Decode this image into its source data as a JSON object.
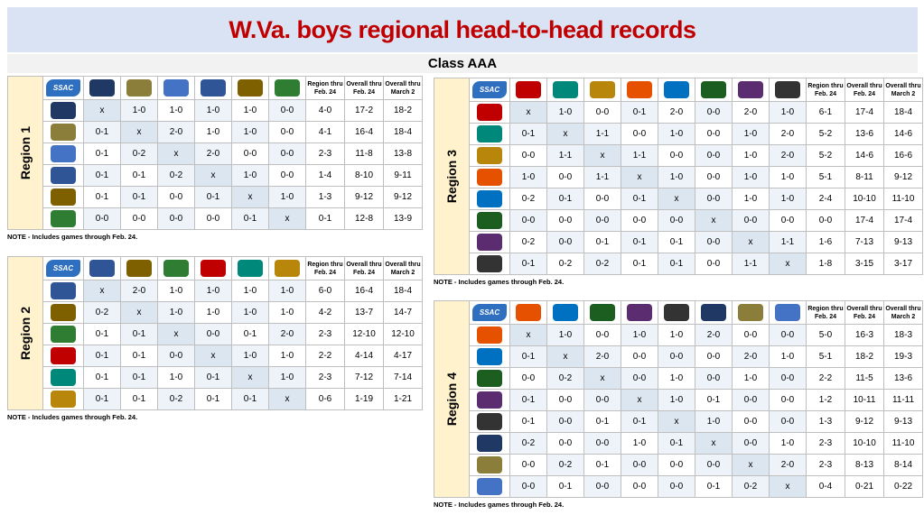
{
  "header": {
    "title": "W.Va. boys regional head-to-head records",
    "subtitle": "Class AAA"
  },
  "column_headers": [
    "Region thru Feb. 24",
    "Overall thru Feb. 24",
    "Overall thru March 2"
  ],
  "regions": [
    {
      "label": "Region 1",
      "corner_logo": "SSAC",
      "note": "NOTE - Includes games through Feb. 24.",
      "rows": [
        [
          "x",
          "1-0",
          "1-0",
          "1-0",
          "1-0",
          "0-0",
          "4-0",
          "17-2",
          "18-2"
        ],
        [
          "0-1",
          "x",
          "2-0",
          "1-0",
          "1-0",
          "0-0",
          "4-1",
          "16-4",
          "18-4"
        ],
        [
          "0-1",
          "0-2",
          "x",
          "2-0",
          "0-0",
          "0-0",
          "2-3",
          "11-8",
          "13-8"
        ],
        [
          "0-1",
          "0-1",
          "0-2",
          "x",
          "1-0",
          "0-0",
          "1-4",
          "8-10",
          "9-11"
        ],
        [
          "0-1",
          "0-1",
          "0-0",
          "0-1",
          "x",
          "1-0",
          "1-3",
          "9-12",
          "9-12"
        ],
        [
          "0-0",
          "0-0",
          "0-0",
          "0-0",
          "0-1",
          "x",
          "0-1",
          "12-8",
          "13-9"
        ]
      ]
    },
    {
      "label": "Region 2",
      "corner_logo": "SSAC",
      "note": "NOTE - Includes games through Feb. 24.",
      "rows": [
        [
          "x",
          "2-0",
          "1-0",
          "1-0",
          "1-0",
          "1-0",
          "6-0",
          "16-4",
          "18-4"
        ],
        [
          "0-2",
          "x",
          "1-0",
          "1-0",
          "1-0",
          "1-0",
          "4-2",
          "13-7",
          "14-7"
        ],
        [
          "0-1",
          "0-1",
          "x",
          "0-0",
          "0-1",
          "2-0",
          "2-3",
          "12-10",
          "12-10"
        ],
        [
          "0-1",
          "0-1",
          "0-0",
          "x",
          "1-0",
          "1-0",
          "2-2",
          "4-14",
          "4-17"
        ],
        [
          "0-1",
          "0-1",
          "1-0",
          "0-1",
          "x",
          "1-0",
          "2-3",
          "7-12",
          "7-14"
        ],
        [
          "0-1",
          "0-1",
          "0-2",
          "0-1",
          "0-1",
          "x",
          "0-6",
          "1-19",
          "1-21"
        ]
      ]
    },
    {
      "label": "Region 3",
      "corner_logo": "SSAC",
      "note": "NOTE - Includes games through Feb. 24.",
      "rows": [
        [
          "x",
          "1-0",
          "0-0",
          "0-1",
          "2-0",
          "0-0",
          "2-0",
          "1-0",
          "6-1",
          "17-4",
          "18-4"
        ],
        [
          "0-1",
          "x",
          "1-1",
          "0-0",
          "1-0",
          "0-0",
          "1-0",
          "2-0",
          "5-2",
          "13-6",
          "14-6"
        ],
        [
          "0-0",
          "1-1",
          "x",
          "1-1",
          "0-0",
          "0-0",
          "1-0",
          "2-0",
          "5-2",
          "14-6",
          "16-6"
        ],
        [
          "1-0",
          "0-0",
          "1-1",
          "x",
          "1-0",
          "0-0",
          "1-0",
          "1-0",
          "5-1",
          "8-11",
          "9-12"
        ],
        [
          "0-2",
          "0-1",
          "0-0",
          "0-1",
          "x",
          "0-0",
          "1-0",
          "1-0",
          "2-4",
          "10-10",
          "11-10"
        ],
        [
          "0-0",
          "0-0",
          "0-0",
          "0-0",
          "0-0",
          "x",
          "0-0",
          "0-0",
          "0-0",
          "17-4",
          "17-4"
        ],
        [
          "0-2",
          "0-0",
          "0-1",
          "0-1",
          "0-1",
          "0-0",
          "x",
          "1-1",
          "1-6",
          "7-13",
          "9-13"
        ],
        [
          "0-1",
          "0-2",
          "0-2",
          "0-1",
          "0-1",
          "0-0",
          "1-1",
          "x",
          "1-8",
          "3-15",
          "3-17"
        ]
      ]
    },
    {
      "label": "Region 4",
      "corner_logo": "SSAC",
      "note": "NOTE - Includes games through Feb. 24.",
      "rows": [
        [
          "x",
          "1-0",
          "0-0",
          "1-0",
          "1-0",
          "2-0",
          "0-0",
          "0-0",
          "5-0",
          "16-3",
          "18-3"
        ],
        [
          "0-1",
          "x",
          "2-0",
          "0-0",
          "0-0",
          "0-0",
          "2-0",
          "1-0",
          "5-1",
          "18-2",
          "19-3"
        ],
        [
          "0-0",
          "0-2",
          "x",
          "0-0",
          "1-0",
          "0-0",
          "1-0",
          "0-0",
          "2-2",
          "11-5",
          "13-6"
        ],
        [
          "0-1",
          "0-0",
          "0-0",
          "x",
          "1-0",
          "0-1",
          "0-0",
          "0-0",
          "1-2",
          "10-11",
          "11-11"
        ],
        [
          "0-1",
          "0-0",
          "0-1",
          "0-1",
          "x",
          "1-0",
          "0-0",
          "0-0",
          "1-3",
          "9-12",
          "9-13"
        ],
        [
          "0-2",
          "0-0",
          "0-0",
          "1-0",
          "0-1",
          "x",
          "0-0",
          "1-0",
          "2-3",
          "10-10",
          "11-10"
        ],
        [
          "0-0",
          "0-2",
          "0-1",
          "0-0",
          "0-0",
          "0-0",
          "x",
          "2-0",
          "2-3",
          "8-13",
          "8-14"
        ],
        [
          "0-0",
          "0-1",
          "0-0",
          "0-0",
          "0-0",
          "0-1",
          "0-2",
          "x",
          "0-4",
          "0-21",
          "0-22"
        ]
      ]
    }
  ]
}
